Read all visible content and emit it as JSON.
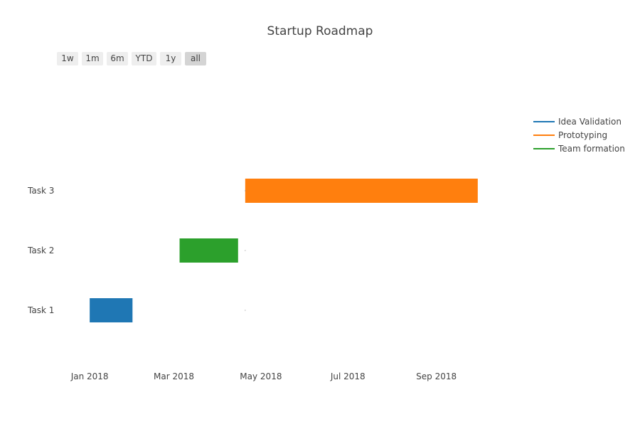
{
  "chart_data": {
    "type": "gantt",
    "title": "Startup Roadmap",
    "range_selector": {
      "buttons": [
        "1w",
        "1m",
        "6m",
        "YTD",
        "1y",
        "all"
      ],
      "active": "all"
    },
    "categories": [
      "Task 1",
      "Task 2",
      "Task 3"
    ],
    "x_ticks": [
      "2018-01-01",
      "2018-03-01",
      "2018-05-01",
      "2018-07-01",
      "2018-09-01"
    ],
    "x_tick_labels": [
      "Jan 2018",
      "Mar 2018",
      "May 2018",
      "Jul 2018",
      "Sep 2018"
    ],
    "x_range": [
      "2017-12-09",
      "2018-10-24"
    ],
    "grid": false,
    "legend_position": "top-right",
    "series": [
      {
        "name": "Idea Validation",
        "color": "#1f77b4",
        "task": "Task 1",
        "start": "2018-01-01",
        "end": "2018-01-31"
      },
      {
        "name": "Prototyping",
        "color": "#ff7f0e",
        "task": "Task 3",
        "start": "2018-04-20",
        "end": "2018-09-30"
      },
      {
        "name": "Team formation",
        "color": "#2ca02c",
        "task": "Task 2",
        "start": "2018-03-05",
        "end": "2018-04-15"
      }
    ]
  }
}
